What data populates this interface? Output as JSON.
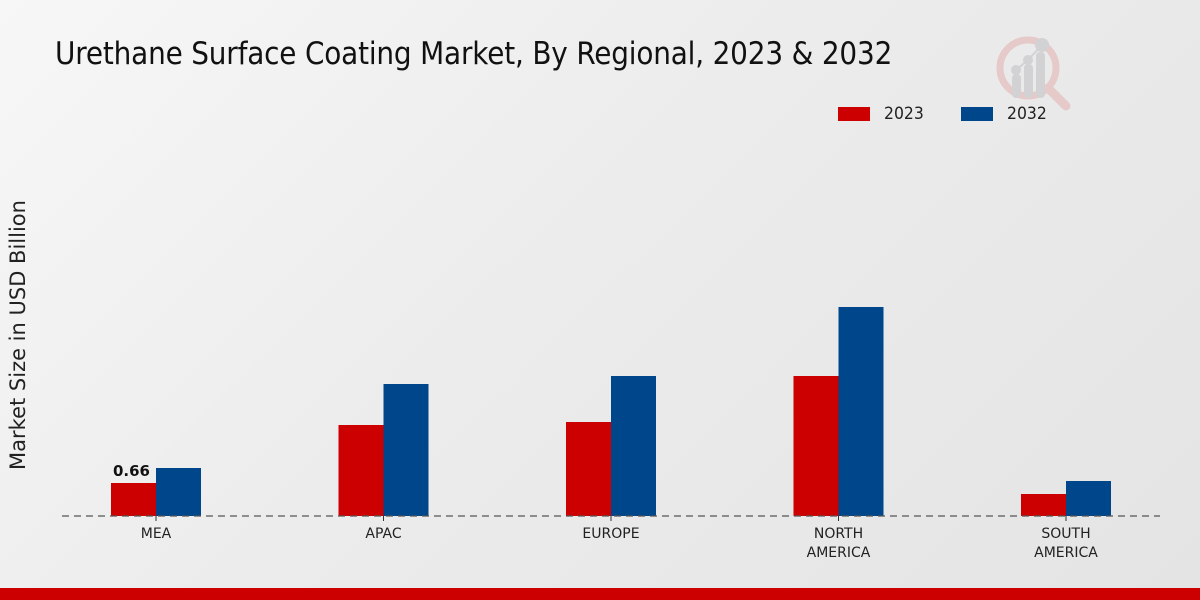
{
  "chart_data": {
    "type": "bar",
    "title": "Urethane Surface Coating Market, By Regional, 2023 & 2032",
    "xlabel": "",
    "ylabel": "Market Size in USD Billion",
    "categories": [
      [
        "MEA"
      ],
      [
        "APAC"
      ],
      [
        "EUROPE"
      ],
      [
        "NORTH",
        "AMERICA"
      ],
      [
        "SOUTH",
        "AMERICA"
      ]
    ],
    "series": [
      {
        "name": "2023",
        "color": "#cc0000",
        "values": [
          0.66,
          1.82,
          1.88,
          2.8,
          0.44
        ]
      },
      {
        "name": "2032",
        "color": "#00468b",
        "values": [
          0.96,
          2.64,
          2.8,
          4.18,
          0.7
        ]
      }
    ],
    "data_labels": [
      {
        "series": 0,
        "index": 0,
        "text": "0.66"
      }
    ],
    "ylim": [
      0,
      5.4
    ],
    "grid": false,
    "baseline_style": "dashed",
    "legend_position": "top-right"
  },
  "legend": [
    {
      "label": "2023",
      "color": "#cc0000"
    },
    {
      "label": "2032",
      "color": "#00468b"
    }
  ],
  "logo": "market-research-magnifier-logo-icon",
  "footer_bar_color": "#cc0000"
}
